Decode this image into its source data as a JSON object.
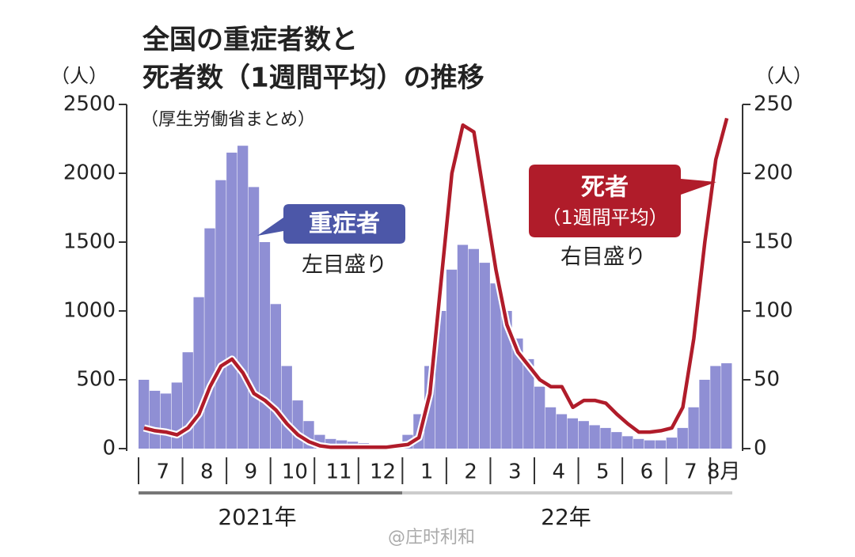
{
  "title_lines": [
    "全国の重症者数と",
    "死者数（1週間平均）の推移"
  ],
  "subtitle": "（厚生労働省まとめ）",
  "annotations": {
    "severe_box": "重症者",
    "severe_note": "左目盛り",
    "death_box": "死者",
    "death_box_sub": "（1週間平均）",
    "death_note": "右目盛り"
  },
  "watermark": "@庄时利和",
  "chart_data": {
    "type": "bar-line",
    "y_unit": "（人）",
    "y2_unit": "（人）",
    "categories": [
      "7",
      null,
      null,
      null,
      "8",
      null,
      null,
      null,
      "9",
      null,
      null,
      null,
      "10",
      null,
      null,
      null,
      "11",
      null,
      null,
      null,
      "12",
      null,
      null,
      null,
      "1",
      null,
      null,
      null,
      "2",
      null,
      null,
      null,
      "3",
      null,
      null,
      null,
      "4",
      null,
      null,
      null,
      "5",
      null,
      null,
      null,
      "6",
      null,
      null,
      null,
      "7",
      null,
      null,
      null,
      "8月",
      null
    ],
    "x_groups": [
      "2021年",
      "22年"
    ],
    "series": [
      {
        "name": "重症者",
        "color": "#8f8fd4",
        "axis": "y",
        "values": [
          500,
          420,
          400,
          480,
          700,
          1100,
          1600,
          1950,
          2150,
          2200,
          1900,
          1500,
          1050,
          600,
          350,
          200,
          100,
          70,
          60,
          50,
          40,
          30,
          30,
          40,
          100,
          250,
          600,
          1000,
          1300,
          1480,
          1450,
          1350,
          1200,
          1000,
          800,
          650,
          450,
          300,
          250,
          220,
          200,
          170,
          150,
          120,
          90,
          70,
          60,
          60,
          80,
          150,
          300,
          500,
          600,
          620
        ]
      },
      {
        "name": "死者",
        "color": "#b01c2a",
        "axis": "y2",
        "values": [
          15,
          13,
          12,
          10,
          15,
          25,
          45,
          60,
          65,
          55,
          40,
          35,
          28,
          18,
          10,
          5,
          2,
          1,
          1,
          1,
          1,
          1,
          1,
          2,
          3,
          8,
          40,
          120,
          200,
          235,
          230,
          180,
          130,
          90,
          70,
          60,
          50,
          45,
          45,
          30,
          35,
          35,
          33,
          25,
          18,
          12,
          12,
          13,
          15,
          30,
          80,
          150,
          210,
          240
        ]
      }
    ],
    "ylim": [
      0,
      2500
    ],
    "yticks": [
      0,
      500,
      1000,
      1500,
      2000,
      2500
    ],
    "y2lim": [
      0,
      250
    ],
    "y2ticks": [
      0,
      50,
      100,
      150,
      200,
      250
    ]
  }
}
